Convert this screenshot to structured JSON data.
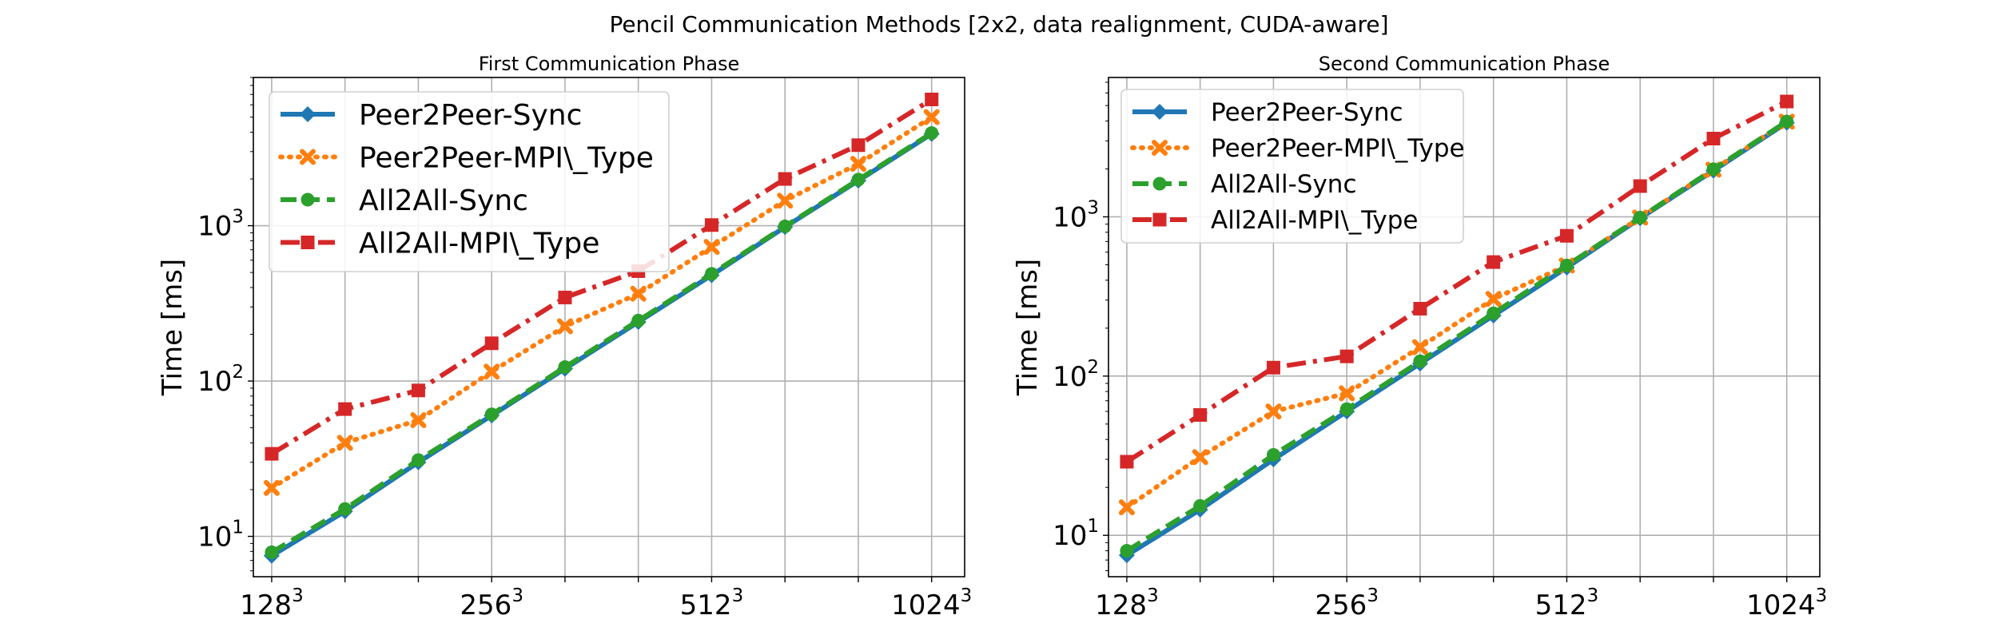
{
  "figure": {
    "title": "Pencil Communication Methods [2x2, data realignment, CUDA-aware]"
  },
  "chart_data": [
    {
      "type": "line",
      "title": "First Communication Phase",
      "xlabel": "",
      "ylabel": "Time [ms]",
      "yscale": "log",
      "ylim": [
        5.5,
        9000
      ],
      "xlim": [
        -0.25,
        9.45
      ],
      "grid": true,
      "legend_position": "top-left",
      "x": [
        0,
        1,
        2,
        3,
        4,
        5,
        6,
        7,
        8,
        9
      ],
      "x_ticks": [
        {
          "pos": 0,
          "base": "128",
          "exp": "3"
        },
        {
          "pos": 3,
          "base": "256",
          "exp": "3"
        },
        {
          "pos": 6,
          "base": "512",
          "exp": "3"
        },
        {
          "pos": 9,
          "base": "1024",
          "exp": "3"
        }
      ],
      "y_ticks": [
        {
          "value": 10,
          "base": "10",
          "exp": "1"
        },
        {
          "value": 100,
          "base": "10",
          "exp": "2"
        },
        {
          "value": 1000,
          "base": "10",
          "exp": "3"
        }
      ],
      "series": [
        {
          "name": "Peer2Peer-Sync",
          "color": "#1f77b4",
          "dash": "solid",
          "marker": "diamond",
          "values": [
            7.5,
            14.5,
            30,
            60,
            120,
            240,
            480,
            980,
            1950,
            3900
          ]
        },
        {
          "name": "Peer2Peer-MPI\\_Type",
          "color": "#ff7f0e",
          "dash": "dotted",
          "marker": "x-mark",
          "values": [
            20.5,
            40,
            56,
            115,
            225,
            365,
            730,
            1450,
            2500,
            5000
          ]
        },
        {
          "name": "All2All-Sync",
          "color": "#2ca02c",
          "dash": "dashed",
          "marker": "circle",
          "values": [
            7.9,
            15,
            31,
            61,
            123,
            245,
            490,
            990,
            1980,
            3950
          ]
        },
        {
          "name": "All2All-MPI\\_Type",
          "color": "#d62728",
          "dash": "dashdot",
          "marker": "square",
          "values": [
            34,
            66,
            87,
            175,
            345,
            510,
            1010,
            2000,
            3300,
            6500
          ]
        }
      ]
    },
    {
      "type": "line",
      "title": "Second Communication Phase",
      "xlabel": "",
      "ylabel": "Time [ms]",
      "yscale": "log",
      "ylim": [
        5.5,
        7500
      ],
      "xlim": [
        -0.25,
        9.45
      ],
      "grid": true,
      "legend_position": "top-left",
      "x": [
        0,
        1,
        2,
        3,
        4,
        5,
        6,
        7,
        8,
        9
      ],
      "x_ticks": [
        {
          "pos": 0,
          "base": "128",
          "exp": "3"
        },
        {
          "pos": 3,
          "base": "256",
          "exp": "3"
        },
        {
          "pos": 6,
          "base": "512",
          "exp": "3"
        },
        {
          "pos": 9,
          "base": "1024",
          "exp": "3"
        }
      ],
      "y_ticks": [
        {
          "value": 10,
          "base": "10",
          "exp": "1"
        },
        {
          "value": 100,
          "base": "10",
          "exp": "2"
        },
        {
          "value": 1000,
          "base": "10",
          "exp": "3"
        }
      ],
      "series": [
        {
          "name": "Peer2Peer-Sync",
          "color": "#1f77b4",
          "dash": "solid",
          "marker": "diamond",
          "values": [
            7.5,
            14.5,
            30,
            60,
            120,
            240,
            480,
            980,
            1950,
            3900
          ]
        },
        {
          "name": "Peer2Peer-MPI\\_Type",
          "color": "#ff7f0e",
          "dash": "dotted",
          "marker": "x-mark",
          "values": [
            15,
            31,
            60,
            78,
            152,
            305,
            495,
            990,
            1980,
            3960
          ]
        },
        {
          "name": "All2All-Sync",
          "color": "#2ca02c",
          "dash": "dashed",
          "marker": "circle",
          "values": [
            8,
            15.3,
            32,
            62,
            124,
            248,
            495,
            990,
            1990,
            3970
          ]
        },
        {
          "name": "All2All-MPI\\_Type",
          "color": "#d62728",
          "dash": "dashdot",
          "marker": "square",
          "values": [
            29,
            57,
            113,
            133,
            265,
            520,
            760,
            1560,
            3100,
            5300
          ]
        }
      ]
    }
  ]
}
